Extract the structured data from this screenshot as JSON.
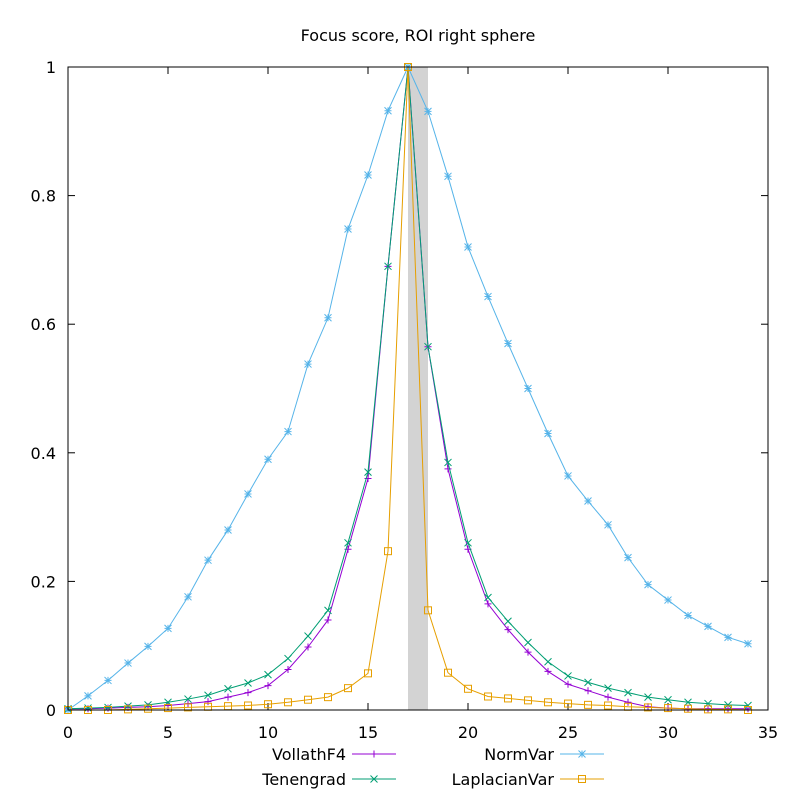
{
  "chart_data": {
    "type": "line",
    "title": "Focus score, ROI right sphere",
    "xlabel": "",
    "ylabel": "",
    "xlim": [
      0,
      35
    ],
    "ylim": [
      0,
      1
    ],
    "xticks": [
      "0",
      "5",
      "10",
      "15",
      "20",
      "25",
      "30",
      "35"
    ],
    "yticks": [
      "0",
      "0.2",
      "0.4",
      "0.6",
      "0.8",
      "1"
    ],
    "grid": false,
    "legend_position": "bottom",
    "highlight_band": {
      "x": [
        17,
        18
      ],
      "color": "#d3d3d3"
    },
    "x": [
      0,
      1,
      2,
      3,
      4,
      5,
      6,
      7,
      8,
      9,
      10,
      11,
      12,
      13,
      14,
      15,
      16,
      17,
      18,
      19,
      20,
      21,
      22,
      23,
      24,
      25,
      26,
      27,
      28,
      29,
      30,
      31,
      32,
      33,
      34
    ],
    "series": [
      {
        "name": "VollathF4",
        "color": "#9400d3",
        "marker": "plus",
        "values": [
          0.002,
          0.002,
          0.003,
          0.004,
          0.005,
          0.007,
          0.01,
          0.013,
          0.02,
          0.027,
          0.038,
          0.063,
          0.098,
          0.14,
          0.25,
          0.36,
          0.69,
          1.0,
          0.565,
          0.375,
          0.25,
          0.165,
          0.125,
          0.09,
          0.06,
          0.04,
          0.03,
          0.02,
          0.012,
          0.005,
          0.003,
          0.002,
          0.002,
          0.002,
          0.002
        ]
      },
      {
        "name": "Tenengrad",
        "color": "#009e73",
        "marker": "cross",
        "values": [
          0.002,
          0.003,
          0.004,
          0.006,
          0.008,
          0.012,
          0.017,
          0.023,
          0.033,
          0.042,
          0.055,
          0.08,
          0.115,
          0.155,
          0.26,
          0.37,
          0.69,
          1.0,
          0.565,
          0.385,
          0.26,
          0.175,
          0.138,
          0.105,
          0.075,
          0.053,
          0.043,
          0.034,
          0.027,
          0.02,
          0.016,
          0.012,
          0.01,
          0.008,
          0.007
        ]
      },
      {
        "name": "NormVar",
        "color": "#56b4e9",
        "marker": "star",
        "values": [
          0.0,
          0.022,
          0.046,
          0.073,
          0.099,
          0.127,
          0.176,
          0.233,
          0.28,
          0.336,
          0.39,
          0.433,
          0.538,
          0.61,
          0.748,
          0.832,
          0.932,
          1.0,
          0.931,
          0.83,
          0.72,
          0.643,
          0.57,
          0.5,
          0.43,
          0.364,
          0.325,
          0.288,
          0.237,
          0.195,
          0.171,
          0.147,
          0.13,
          0.113,
          0.103
        ]
      },
      {
        "name": "LaplacianVar",
        "color": "#e69f00",
        "marker": "square",
        "values": [
          0.0,
          0.0,
          0.0,
          0.001,
          0.002,
          0.003,
          0.004,
          0.005,
          0.006,
          0.007,
          0.009,
          0.012,
          0.016,
          0.02,
          0.034,
          0.057,
          0.247,
          1.0,
          0.155,
          0.058,
          0.033,
          0.021,
          0.018,
          0.015,
          0.012,
          0.01,
          0.008,
          0.007,
          0.005,
          0.004,
          0.003,
          0.002,
          0.001,
          0.001,
          0.0
        ]
      }
    ]
  }
}
